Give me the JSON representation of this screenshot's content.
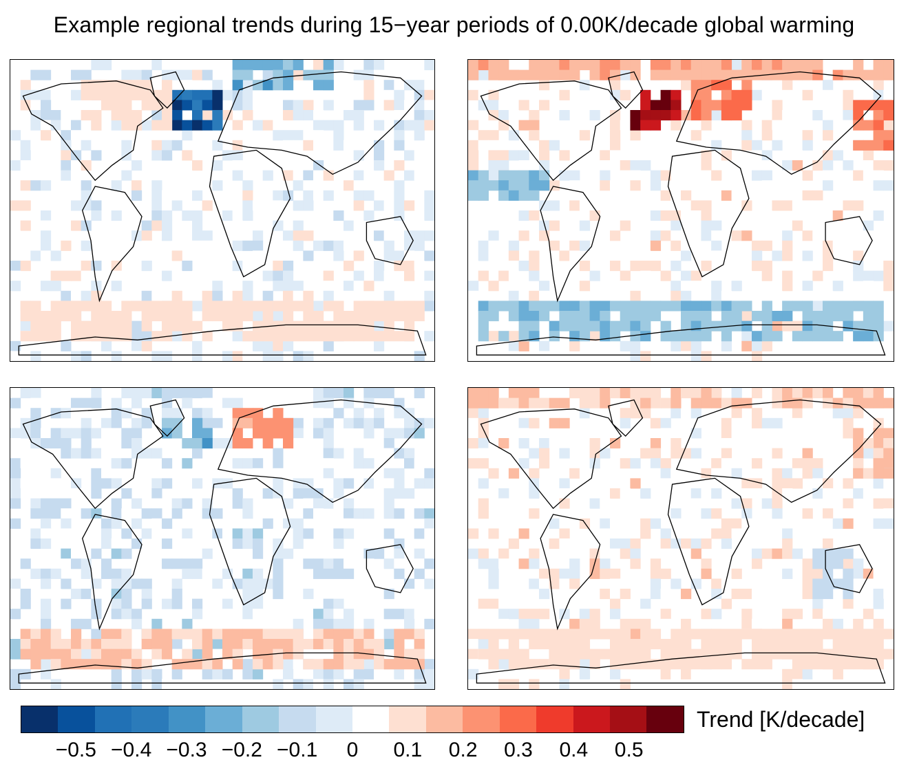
{
  "title": "Example regional trends during 15−year periods of 0.00K/decade global warming",
  "colorbar": {
    "label": "Trend [K/decade]",
    "colors": [
      "#08306b",
      "#08519c",
      "#2171b5",
      "#2b7bba",
      "#4292c6",
      "#6baed6",
      "#9ecae1",
      "#c6dbef",
      "#deebf7",
      "#ffffff",
      "#fee0d2",
      "#fcbba1",
      "#fc9272",
      "#fb6a4a",
      "#ef3b2c",
      "#cb181d",
      "#a50f15",
      "#67000d"
    ],
    "ticks": [
      {
        "label": "−0.5",
        "value": -0.5
      },
      {
        "label": "−0.4",
        "value": -0.4
      },
      {
        "label": "−0.3",
        "value": -0.3
      },
      {
        "label": "−0.2",
        "value": -0.2
      },
      {
        "label": "−0.1",
        "value": -0.1
      },
      {
        "label": "0",
        "value": 0
      },
      {
        "label": "0.1",
        "value": 0.1
      },
      {
        "label": "0.2",
        "value": 0.2
      },
      {
        "label": "0.3",
        "value": 0.3
      },
      {
        "label": "0.4",
        "value": 0.4
      },
      {
        "label": "0.5",
        "value": 0.5
      }
    ],
    "range": [
      -0.6,
      0.6
    ]
  },
  "maps": [
    {
      "id": "top-left",
      "anomalies": [
        {
          "region": "north-atlantic-south-of-greenland",
          "trend": -0.5
        },
        {
          "region": "arctic-barents-kara",
          "trend": -0.25
        },
        {
          "region": "canada",
          "trend": 0.1
        },
        {
          "region": "southern-ocean",
          "trend": 0.1
        }
      ]
    },
    {
      "id": "top-right",
      "anomalies": [
        {
          "region": "arctic-band",
          "trend": 0.2
        },
        {
          "region": "north-atlantic-south-of-greenland",
          "trend": 0.55
        },
        {
          "region": "scandinavia",
          "trend": 0.3
        },
        {
          "region": "northwest-pacific",
          "trend": 0.3
        },
        {
          "region": "tropical-east-pacific",
          "trend": -0.2
        },
        {
          "region": "southern-ocean",
          "trend": -0.2
        }
      ]
    },
    {
      "id": "bottom-left",
      "anomalies": [
        {
          "region": "scandinavia",
          "trend": 0.25
        },
        {
          "region": "labrador-sea",
          "trend": -0.25
        },
        {
          "region": "south-pacific-west",
          "trend": -0.2
        },
        {
          "region": "southern-ocean",
          "trend": 0.15
        }
      ]
    },
    {
      "id": "bottom-right",
      "anomalies": [
        {
          "region": "arctic-band",
          "trend": 0.15
        },
        {
          "region": "northwest-pacific",
          "trend": 0.15
        },
        {
          "region": "australia",
          "trend": -0.1
        },
        {
          "region": "southern-ocean",
          "trend": 0.1
        }
      ]
    }
  ]
}
